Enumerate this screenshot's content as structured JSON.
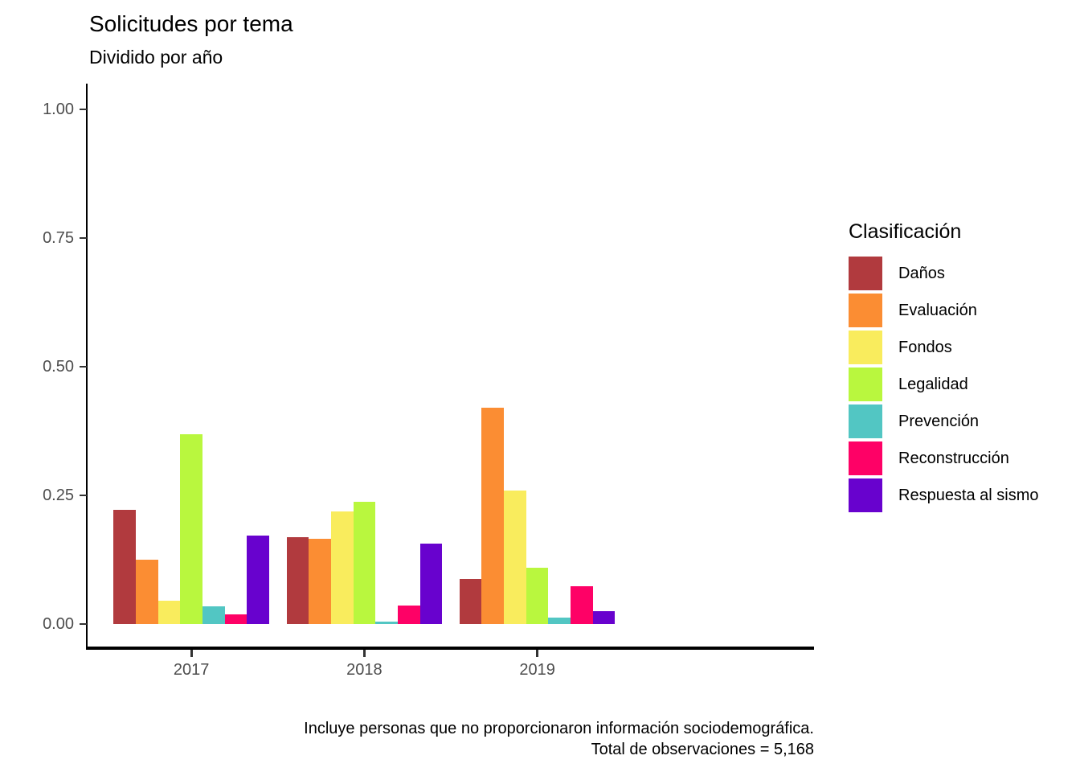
{
  "title": "Solicitudes por tema",
  "subtitle": "Dividido por año",
  "caption": {
    "line1": "Incluye personas que no proporcionaron información sociodemográfica.",
    "line2": "Total de observaciones = 5,168"
  },
  "legend": {
    "title": "Clasificación",
    "position": "right",
    "items": [
      {
        "label": "Daños",
        "color": "#B13A3E"
      },
      {
        "label": "Evaluación",
        "color": "#FB8D33"
      },
      {
        "label": "Fondos",
        "color": "#F9EC5D"
      },
      {
        "label": "Legalidad",
        "color": "#B9F73E"
      },
      {
        "label": "Prevención",
        "color": "#52C6C3"
      },
      {
        "label": "Reconstrucción",
        "color": "#FE0166"
      },
      {
        "label": "Respuesta al sismo",
        "color": "#6802CE"
      }
    ]
  },
  "chart_data": {
    "type": "bar",
    "grouped": true,
    "title": "Solicitudes por tema",
    "subtitle": "Dividido por año",
    "xlabel": "",
    "ylabel": "",
    "categories": [
      "2017",
      "2018",
      "2019"
    ],
    "series": [
      {
        "name": "Daños",
        "color": "#B13A3E",
        "values": [
          0.222,
          0.168,
          0.087
        ]
      },
      {
        "name": "Evaluación",
        "color": "#FB8D33",
        "values": [
          0.125,
          0.166,
          0.42
        ]
      },
      {
        "name": "Fondos",
        "color": "#F9EC5D",
        "values": [
          0.046,
          0.219,
          0.259
        ]
      },
      {
        "name": "Legalidad",
        "color": "#B9F73E",
        "values": [
          0.368,
          0.237,
          0.109
        ]
      },
      {
        "name": "Prevención",
        "color": "#52C6C3",
        "values": [
          0.035,
          0.005,
          0.013
        ]
      },
      {
        "name": "Reconstrucción",
        "color": "#FE0166",
        "values": [
          0.019,
          0.036,
          0.074
        ]
      },
      {
        "name": "Respuesta al sismo",
        "color": "#6802CE",
        "values": [
          0.172,
          0.156,
          0.025
        ]
      }
    ],
    "ylim": [
      0,
      1.0
    ],
    "y_ticks": [
      {
        "label": "0.00",
        "value": 0.0
      },
      {
        "label": "0.25",
        "value": 0.25
      },
      {
        "label": "0.50",
        "value": 0.5
      },
      {
        "label": "0.75",
        "value": 0.75
      },
      {
        "label": "1.00",
        "value": 1.0
      }
    ],
    "grid": false,
    "legend_position": "right"
  },
  "style": {
    "axis_line_color": "#000000",
    "tick_color": "#333333",
    "axis_text_color": "#4d4d4d",
    "background": "#ffffff"
  }
}
